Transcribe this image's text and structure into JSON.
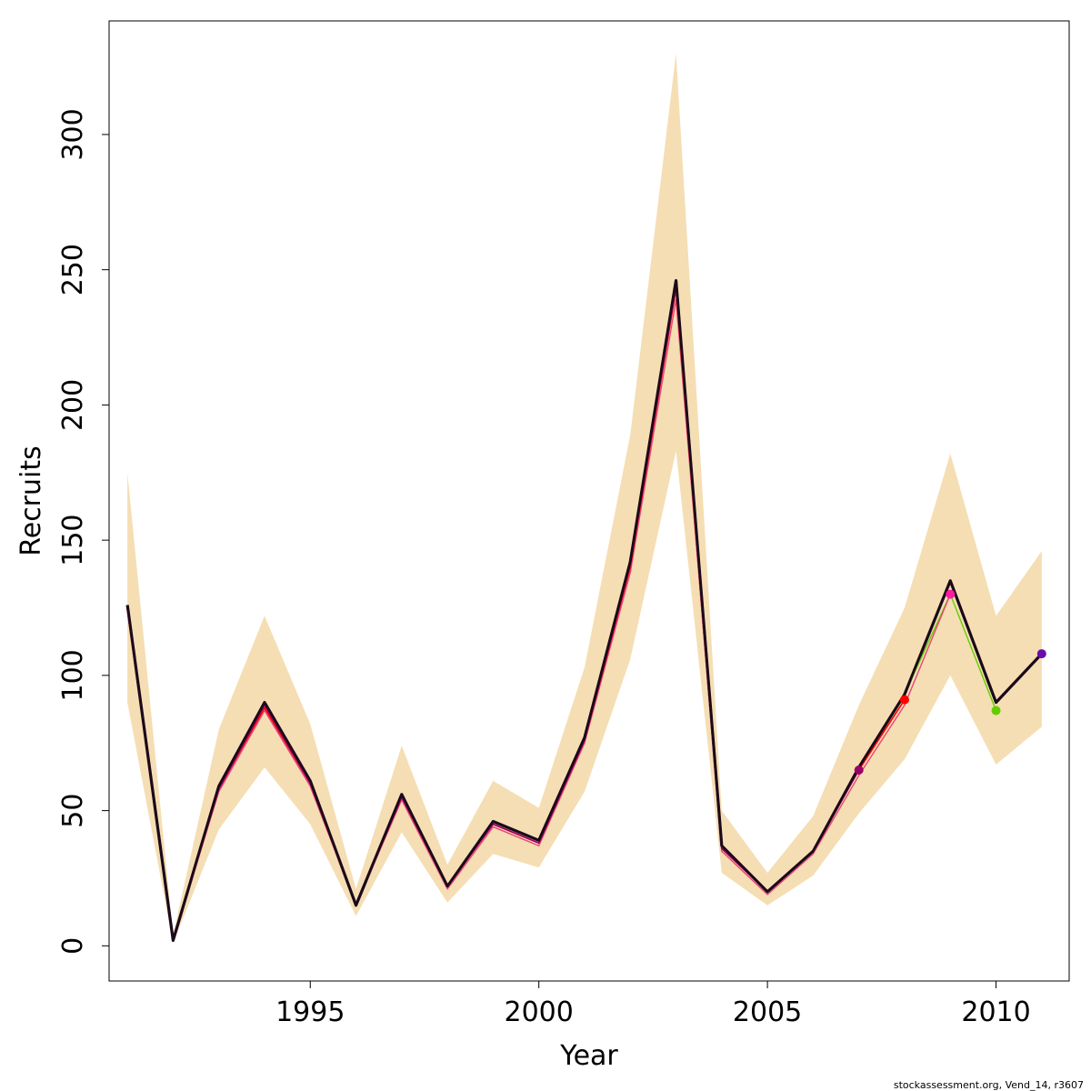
{
  "chart_data": {
    "type": "line",
    "title": "",
    "xlabel": "Year",
    "ylabel": "Recruits",
    "xlim": [
      1990.6,
      2011.6
    ],
    "ylim": [
      -13,
      342
    ],
    "x_ticks": [
      1995,
      2000,
      2005,
      2010
    ],
    "y_ticks": [
      0,
      50,
      100,
      150,
      200,
      250,
      300
    ],
    "grid": false,
    "legend": "none",
    "colors": {
      "band": "#f5deb3",
      "base": "#1a0a1a",
      "base_thin": "#e8457a",
      "peel_2010": "#66cc00",
      "peel_2009": "#ff1aa3",
      "peel_2008": "#ff0000",
      "peel_2007": "#990066",
      "end_2011": "#6a0dad"
    },
    "interval": {
      "x": [
        1991,
        1992,
        1993,
        1994,
        1995,
        1996,
        1997,
        1998,
        1999,
        2000,
        2001,
        2002,
        2003,
        2004,
        2005,
        2006,
        2007,
        2008,
        2009,
        2010,
        2011
      ],
      "upper": [
        175,
        4,
        80,
        122,
        82,
        21,
        74,
        30,
        61,
        51,
        103,
        189,
        330,
        50,
        27,
        48,
        89,
        125,
        182,
        122,
        146
      ],
      "lower": [
        90,
        1,
        43,
        66,
        45,
        11,
        42,
        16,
        34,
        29,
        57,
        106,
        183,
        27,
        15,
        26,
        49,
        69,
        100,
        67,
        81
      ]
    },
    "series": [
      {
        "x": [
          1991,
          1992,
          1993,
          1994,
          1995,
          1996,
          1997,
          1998,
          1999,
          2000,
          2001,
          2002,
          2003,
          2004,
          2005,
          2006,
          2007,
          2008,
          2009,
          2010,
          2011
        ],
        "values": [
          126,
          2,
          59,
          90,
          61,
          15,
          56,
          22,
          46,
          39,
          77,
          142,
          246,
          37,
          20,
          35,
          66,
          93,
          135,
          90,
          108
        ],
        "color_key": "base",
        "width": 3.2,
        "marker": 2011,
        "marker_color_key": "end_2011"
      },
      {
        "x": [
          1991,
          1992,
          1993,
          1994,
          1995,
          1996,
          1997,
          1998,
          1999,
          2000,
          2001,
          2002,
          2003,
          2004,
          2005,
          2006,
          2007,
          2008,
          2009,
          2010
        ],
        "values": [
          125,
          2,
          59,
          90,
          61,
          15,
          56,
          22,
          46,
          39,
          77,
          142,
          246,
          37,
          20,
          35,
          66,
          93,
          130,
          87
        ],
        "color_key": "peel_2010",
        "width": 1.4,
        "marker": 2010,
        "marker_color_key": "peel_2010"
      },
      {
        "x": [
          1991,
          1992,
          1993,
          1994,
          1995,
          1996,
          1997,
          1998,
          1999,
          2000,
          2001,
          2002,
          2003,
          2004,
          2005,
          2006,
          2007,
          2008,
          2009
        ],
        "values": [
          124,
          2,
          57,
          87,
          59,
          15,
          54,
          21,
          44,
          37,
          75,
          138,
          239,
          35,
          19,
          34,
          63,
          89,
          130
        ],
        "color_key": "base_thin",
        "width": 1.4,
        "marker": 2009,
        "marker_color_key": "peel_2009"
      },
      {
        "x": [
          1991,
          1992,
          1993,
          1994,
          1995,
          1996,
          1997,
          1998,
          1999,
          2000,
          2001,
          2002,
          2003,
          2004,
          2005,
          2006,
          2007,
          2008
        ],
        "values": [
          125,
          2,
          58,
          88,
          60,
          15,
          55,
          22,
          45,
          38,
          76,
          140,
          243,
          36,
          20,
          35,
          65,
          91
        ],
        "color_key": "peel_2008",
        "width": 1.6,
        "marker": 2008,
        "marker_color_key": "peel_2008"
      },
      {
        "x": [
          1991,
          1992,
          1993,
          1994,
          1995,
          1996,
          1997,
          1998,
          1999,
          2000,
          2001,
          2002,
          2003,
          2004,
          2005,
          2006,
          2007
        ],
        "values": [
          125,
          2,
          58,
          89,
          60,
          15,
          55,
          22,
          45,
          38,
          76,
          141,
          244,
          36,
          20,
          35,
          65
        ],
        "color_key": "peel_2007",
        "width": 1.6,
        "marker": 2007,
        "marker_color_key": "peel_2007"
      },
      {
        "x": [
          1991,
          1992,
          1993,
          1994,
          1995,
          1996,
          1997,
          1998,
          1999,
          2000,
          2001,
          2002,
          2003,
          2004,
          2005,
          2006,
          2007,
          2008,
          2009,
          2010,
          2011
        ],
        "values": [
          126,
          2,
          59,
          90,
          61,
          15,
          56,
          22,
          46,
          39,
          77,
          142,
          246,
          37,
          20,
          35,
          66,
          93,
          135,
          90,
          108
        ],
        "color_key": "base",
        "width": 2.6,
        "marker": null,
        "marker_color_key": null
      }
    ]
  },
  "footnote": "stockassessment.org, Vend_14, r3607"
}
